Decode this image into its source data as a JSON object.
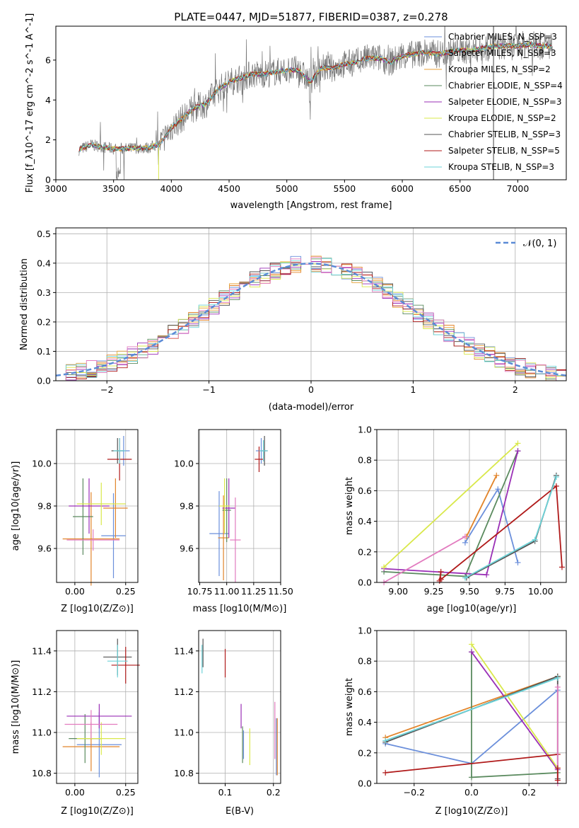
{
  "figure_title": "PLATE=0447, MJD=51877, FIBERID=0387, z=0.278",
  "colors": {
    "chabrier_miles": "#6b8fdb",
    "salpeter_miles": "#e2842a",
    "kroupa_miles": "#e8a23a",
    "chabrier_elodie": "#5a8a5e",
    "salpeter_elodie": "#9a2fb6",
    "kroupa_elodie": "#d9e84a",
    "chabrier_stelib": "#555555",
    "salpeter_stelib": "#b01a1a",
    "kroupa_stelib": "#6dd3d8",
    "pink": "#e27bbf",
    "data_grey": "#777777",
    "gauss": "#5b8bd6"
  },
  "chart_data": [
    {
      "id": "spectrum",
      "type": "line",
      "xlabel": "wavelength [Angstrom, rest frame]",
      "ylabel": "Flux [f_λ10^-17 erg cm^-2 s^-1 A^-1]",
      "xlim": [
        3000,
        7420
      ],
      "ylim": [
        0,
        7.7
      ],
      "xticks": [
        "3000",
        "3500",
        "4000",
        "4500",
        "5000",
        "5500",
        "6000",
        "6500",
        "7000"
      ],
      "yticks": [
        "0",
        "2",
        "4",
        "6"
      ],
      "legend_position": "upper right",
      "legend": [
        {
          "label": "Chabrier MILES, N_SSP=3",
          "color": "#6b8fdb"
        },
        {
          "label": "Salpeter MILES, N_SSP=3",
          "color": "#e2842a"
        },
        {
          "label": "Kroupa MILES, N_SSP=2",
          "color": "#e8a23a"
        },
        {
          "label": "Chabrier ELODIE, N_SSP=4",
          "color": "#5a8a5e"
        },
        {
          "label": "Salpeter ELODIE, N_SSP=3",
          "color": "#9a2fb6"
        },
        {
          "label": "Kroupa ELODIE, N_SSP=2",
          "color": "#d9e84a"
        },
        {
          "label": "Chabrier STELIB, N_SSP=3",
          "color": "#555555"
        },
        {
          "label": "Salpeter STELIB, N_SSP=5",
          "color": "#b01a1a"
        },
        {
          "label": "Kroupa STELIB, N_SSP=3",
          "color": "#6dd3d8"
        }
      ],
      "continuum": [
        [
          3200,
          1.5
        ],
        [
          3300,
          1.75
        ],
        [
          3400,
          1.65
        ],
        [
          3500,
          1.55
        ],
        [
          3600,
          1.55
        ],
        [
          3700,
          1.6
        ],
        [
          3800,
          1.6
        ],
        [
          3900,
          1.8
        ],
        [
          4000,
          2.6
        ],
        [
          4100,
          3.1
        ],
        [
          4200,
          3.6
        ],
        [
          4300,
          3.8
        ],
        [
          4400,
          4.5
        ],
        [
          4500,
          4.9
        ],
        [
          4600,
          5.1
        ],
        [
          4700,
          5.3
        ],
        [
          4800,
          5.3
        ],
        [
          4900,
          5.4
        ],
        [
          5000,
          5.5
        ],
        [
          5100,
          5.5
        ],
        [
          5200,
          4.9
        ],
        [
          5300,
          5.6
        ],
        [
          5400,
          5.6
        ],
        [
          5500,
          5.8
        ],
        [
          5600,
          5.9
        ],
        [
          5700,
          6.1
        ],
        [
          5800,
          6.1
        ],
        [
          5900,
          5.9
        ],
        [
          6000,
          6.2
        ],
        [
          6100,
          6.3
        ],
        [
          6200,
          6.4
        ],
        [
          6300,
          6.3
        ],
        [
          6400,
          6.4
        ],
        [
          6500,
          6.5
        ],
        [
          6600,
          6.5
        ],
        [
          6700,
          6.6
        ],
        [
          6800,
          6.7
        ],
        [
          6900,
          6.7
        ],
        [
          7000,
          6.7
        ],
        [
          7100,
          6.8
        ],
        [
          7200,
          6.7
        ],
        [
          7300,
          6.7
        ]
      ]
    },
    {
      "id": "histogram",
      "type": "line",
      "xlabel": "(data-model)/error",
      "ylabel": "Normed distribution",
      "xlim": [
        -2.5,
        2.5
      ],
      "ylim": [
        0,
        0.52
      ],
      "xticks": [
        "−2",
        "−1",
        "0",
        "1",
        "2"
      ],
      "yticks": [
        "0.0",
        "0.1",
        "0.2",
        "0.3",
        "0.4",
        "0.5"
      ],
      "legend": [
        {
          "label": "𝒩(0, 1)",
          "color": "#5b8bd6"
        }
      ],
      "series": [
        {
          "name": "gaussian",
          "x_range": [
            -2.5,
            2.5
          ],
          "mean": 0,
          "sigma": 1
        }
      ]
    },
    {
      "id": "age_vs_Z",
      "type": "scatter",
      "xlabel": "Z [log10(Z/Z⊙)]",
      "ylabel": "age  [log10(age/yr)]",
      "xlim": [
        -0.09,
        0.31
      ],
      "ylim": [
        9.44,
        10.16
      ],
      "xticks": [
        "0.00",
        "0.25"
      ],
      "yticks": [
        "9.6",
        "9.8",
        "10.0"
      ],
      "points": [
        {
          "x": 0.19,
          "y": 9.66,
          "xerr": 0.06,
          "yerr": 0.2,
          "color": "#6b8fdb"
        },
        {
          "x": 0.24,
          "y": 10.06,
          "xerr": 0.03,
          "yerr": 0.07,
          "color": "#6b8fdb"
        },
        {
          "x": 0.08,
          "y": 9.645,
          "xerr": 0.14,
          "yerr": 0.22,
          "color": "#e2842a"
        },
        {
          "x": 0.2,
          "y": 9.79,
          "xerr": 0.06,
          "yerr": 0.14,
          "color": "#e2842a"
        },
        {
          "x": 0.04,
          "y": 9.75,
          "xerr": 0.05,
          "yerr": 0.18,
          "color": "#5a8a5e"
        },
        {
          "x": 0.07,
          "y": 9.8,
          "xerr": 0.1,
          "yerr": 0.13,
          "color": "#9a2fb6"
        },
        {
          "x": 0.13,
          "y": 9.81,
          "xerr": 0.12,
          "yerr": 0.1,
          "color": "#d9e84a"
        },
        {
          "x": 0.21,
          "y": 10.06,
          "xerr": 0.03,
          "yerr": 0.06,
          "color": "#555555"
        },
        {
          "x": 0.22,
          "y": 10.02,
          "xerr": 0.06,
          "yerr": 0.1,
          "color": "#b01a1a"
        },
        {
          "x": 0.22,
          "y": 10.06,
          "xerr": 0.03,
          "yerr": 0.06,
          "color": "#6dd3d8"
        },
        {
          "x": 0.09,
          "y": 9.64,
          "xerr": 0.13,
          "yerr": 0.05,
          "color": "#e27bbf"
        }
      ]
    },
    {
      "id": "age_vs_mass",
      "type": "scatter",
      "xlabel": "mass [log10(M/M⊙)]",
      "xlim": [
        10.74,
        11.5
      ],
      "ylim": [
        9.44,
        10.16
      ],
      "xticks": [
        "10.75",
        "11.00",
        "11.25",
        "11.50"
      ],
      "yticks": [
        "9.6",
        "9.8",
        "10.0"
      ],
      "points": [
        {
          "x": 10.93,
          "y": 9.67,
          "xerr": 0.09,
          "yerr": 0.2,
          "color": "#6b8fdb"
        },
        {
          "x": 10.97,
          "y": 9.65,
          "xerr": 0.05,
          "yerr": 0.2,
          "color": "#e2842a"
        },
        {
          "x": 11.32,
          "y": 10.06,
          "xerr": 0.05,
          "yerr": 0.06,
          "color": "#6b8fdb"
        },
        {
          "x": 11.0,
          "y": 9.78,
          "xerr": 0.04,
          "yerr": 0.15,
          "color": "#5a8a5e"
        },
        {
          "x": 11.02,
          "y": 9.79,
          "xerr": 0.06,
          "yerr": 0.14,
          "color": "#9a2fb6"
        },
        {
          "x": 10.98,
          "y": 9.8,
          "xerr": 0.05,
          "yerr": 0.13,
          "color": "#d9e84a"
        },
        {
          "x": 11.35,
          "y": 10.06,
          "xerr": 0.03,
          "yerr": 0.07,
          "color": "#555555"
        },
        {
          "x": 11.3,
          "y": 10.02,
          "xerr": 0.04,
          "yerr": 0.06,
          "color": "#b01a1a"
        },
        {
          "x": 11.34,
          "y": 10.06,
          "xerr": 0.04,
          "yerr": 0.05,
          "color": "#6dd3d8"
        },
        {
          "x": 11.08,
          "y": 9.64,
          "xerr": 0.05,
          "yerr": 0.2,
          "color": "#e27bbf"
        }
      ]
    },
    {
      "id": "weight_vs_age",
      "type": "line",
      "xlabel": "age  [log10(age/yr)]",
      "ylabel": "mass weight",
      "xlim": [
        8.85,
        10.18
      ],
      "ylim": [
        0,
        1.0
      ],
      "xticks": [
        "9.00",
        "9.25",
        "9.50",
        "9.75",
        "10.00"
      ],
      "yticks": [
        "0.0",
        "0.2",
        "0.4",
        "0.6",
        "0.8",
        "1.0"
      ],
      "series": [
        {
          "name": "",
          "color": "#6b8fdb",
          "points": [
            [
              9.47,
              0.26
            ],
            [
              9.7,
              0.61
            ],
            [
              9.84,
              0.13
            ]
          ]
        },
        {
          "name": "",
          "color": "#e2842a",
          "points": [
            [
              9.48,
              0.3
            ],
            [
              9.69,
              0.7
            ]
          ]
        },
        {
          "name": "",
          "color": "#5a8a5e",
          "points": [
            [
              8.9,
              0.07
            ],
            [
              9.47,
              0.04
            ],
            [
              9.84,
              0.86
            ]
          ]
        },
        {
          "name": "",
          "color": "#9a2fb6",
          "points": [
            [
              8.9,
              0.09
            ],
            [
              9.62,
              0.05
            ],
            [
              9.84,
              0.86
            ]
          ]
        },
        {
          "name": "",
          "color": "#d9e84a",
          "points": [
            [
              8.9,
              0.1
            ],
            [
              9.84,
              0.91
            ]
          ]
        },
        {
          "name": "",
          "color": "#555555",
          "points": [
            [
              9.48,
              0.03
            ],
            [
              9.96,
              0.27
            ],
            [
              10.11,
              0.7
            ]
          ]
        },
        {
          "name": "",
          "color": "#b01a1a",
          "points": [
            [
              9.3,
              0.02
            ],
            [
              10.11,
              0.63
            ],
            [
              10.15,
              0.1
            ]
          ]
        },
        {
          "name": "",
          "color": "#6dd3d8",
          "points": [
            [
              9.47,
              0.03
            ],
            [
              9.96,
              0.28
            ],
            [
              10.11,
              0.69
            ]
          ]
        },
        {
          "name": "",
          "color": "#e27bbf",
          "points": [
            [
              8.9,
              0.0
            ],
            [
              9.47,
              0.3
            ]
          ]
        },
        {
          "name": "",
          "color": "#b01a1a",
          "points": [
            [
              9.3,
              0.07
            ],
            [
              9.29,
              0.01
            ]
          ]
        }
      ]
    },
    {
      "id": "mass_vs_Z",
      "type": "scatter",
      "xlabel": "Z [log10(Z/Z⊙)]",
      "ylabel": "mass [log10(M/M⊙)]",
      "xlim": [
        -0.09,
        0.31
      ],
      "ylim": [
        10.75,
        11.5
      ],
      "xticks": [
        "0.00",
        "0.25"
      ],
      "yticks": [
        "10.8",
        "11.0",
        "11.2",
        "11.4"
      ],
      "points": [
        {
          "x": 0.12,
          "y": 10.94,
          "xerr": 0.11,
          "yerr": 0.16,
          "color": "#6b8fdb"
        },
        {
          "x": 0.08,
          "y": 10.93,
          "xerr": 0.14,
          "yerr": 0.12,
          "color": "#e2842a"
        },
        {
          "x": 0.05,
          "y": 10.97,
          "xerr": 0.08,
          "yerr": 0.12,
          "color": "#5a8a5e"
        },
        {
          "x": 0.12,
          "y": 11.08,
          "xerr": 0.16,
          "yerr": 0.06,
          "color": "#9a2fb6"
        },
        {
          "x": 0.13,
          "y": 10.97,
          "xerr": 0.12,
          "yerr": 0.08,
          "color": "#d9e84a"
        },
        {
          "x": 0.21,
          "y": 11.37,
          "xerr": 0.07,
          "yerr": 0.09,
          "color": "#555555"
        },
        {
          "x": 0.25,
          "y": 11.33,
          "xerr": 0.07,
          "yerr": 0.09,
          "color": "#b01a1a"
        },
        {
          "x": 0.21,
          "y": 11.35,
          "xerr": 0.05,
          "yerr": 0.08,
          "color": "#6dd3d8"
        },
        {
          "x": 0.08,
          "y": 11.04,
          "xerr": 0.13,
          "yerr": 0.07,
          "color": "#e27bbf"
        }
      ]
    },
    {
      "id": "mass_vs_ebv",
      "type": "scatter",
      "xlabel": "E(B-V)",
      "xlim": [
        0.045,
        0.215
      ],
      "ylim": [
        10.75,
        11.5
      ],
      "xticks": [
        "0.1",
        "0.2"
      ],
      "yticks": [
        "10.8",
        "11.0",
        "11.2",
        "11.4"
      ],
      "points": [
        {
          "x": 0.054,
          "y": 11.39,
          "yerr": 0.07,
          "color": "#555555"
        },
        {
          "x": 0.052,
          "y": 11.36,
          "yerr": 0.07,
          "color": "#6dd3d8"
        },
        {
          "x": 0.1,
          "y": 11.34,
          "yerr": 0.07,
          "color": "#b01a1a"
        },
        {
          "x": 0.133,
          "y": 11.08,
          "yerr": 0.06,
          "color": "#9a2fb6"
        },
        {
          "x": 0.136,
          "y": 10.94,
          "yerr": 0.09,
          "color": "#5a8a5e"
        },
        {
          "x": 0.138,
          "y": 10.94,
          "yerr": 0.07,
          "color": "#6b8fdb"
        },
        {
          "x": 0.151,
          "y": 10.93,
          "yerr": 0.09,
          "color": "#d9e84a"
        },
        {
          "x": 0.203,
          "y": 11.01,
          "yerr": 0.14,
          "color": "#e27bbf"
        },
        {
          "x": 0.206,
          "y": 10.93,
          "yerr": 0.14,
          "color": "#6b8fdb"
        },
        {
          "x": 0.208,
          "y": 10.93,
          "yerr": 0.14,
          "color": "#e2842a"
        }
      ]
    },
    {
      "id": "weight_vs_Z",
      "type": "line",
      "xlabel": "Z [log10(Z/Z⊙)]",
      "ylabel": "mass weight",
      "xlim": [
        -0.33,
        0.33
      ],
      "ylim": [
        0,
        1.0
      ],
      "xticks": [
        "−0.2",
        "0.0",
        "0.2"
      ],
      "yticks": [
        "0.0",
        "0.2",
        "0.4",
        "0.6",
        "0.8",
        "1.0"
      ],
      "series": [
        {
          "name": "",
          "color": "#6b8fdb",
          "points": [
            [
              -0.3,
              0.26
            ],
            [
              0.0,
              0.13
            ],
            [
              0.3,
              0.61
            ]
          ]
        },
        {
          "name": "",
          "color": "#e2842a",
          "points": [
            [
              -0.3,
              0.3
            ],
            [
              0.3,
              0.7
            ]
          ]
        },
        {
          "name": "",
          "color": "#5a8a5e",
          "points": [
            [
              0.0,
              0.86
            ],
            [
              0.0,
              0.04
            ],
            [
              0.3,
              0.07
            ]
          ]
        },
        {
          "name": "",
          "color": "#9a2fb6",
          "points": [
            [
              0.0,
              0.86
            ],
            [
              0.3,
              0.09
            ]
          ]
        },
        {
          "name": "",
          "color": "#d9e84a",
          "points": [
            [
              0.0,
              0.91
            ],
            [
              0.3,
              0.1
            ]
          ]
        },
        {
          "name": "",
          "color": "#555555",
          "points": [
            [
              -0.3,
              0.27
            ],
            [
              0.3,
              0.7
            ],
            [
              0.3,
              0.03
            ]
          ]
        },
        {
          "name": "",
          "color": "#b01a1a",
          "points": [
            [
              -0.3,
              0.07
            ],
            [
              0.3,
              0.19
            ]
          ]
        },
        {
          "name": "",
          "color": "#6dd3d8",
          "points": [
            [
              -0.3,
              0.28
            ],
            [
              0.3,
              0.69
            ]
          ]
        },
        {
          "name": "",
          "color": "#e27bbf",
          "points": [
            [
              0.3,
              0.63
            ],
            [
              0.3,
              0.0
            ]
          ]
        },
        {
          "name": "",
          "color": "#b01a1a",
          "points": [
            [
              0.3,
              0.1
            ],
            [
              0.3,
              0.02
            ]
          ]
        }
      ]
    }
  ]
}
